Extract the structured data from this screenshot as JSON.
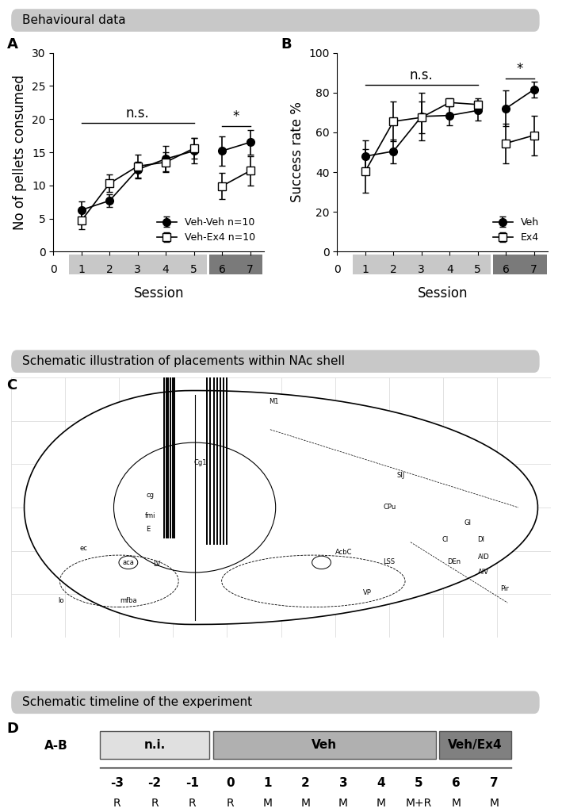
{
  "headers": [
    "Behavioural data",
    "Schematic illustration of placements within NAc shell",
    "Schematic timeline of the experiment"
  ],
  "panel_letters": [
    "A",
    "B",
    "C",
    "D"
  ],
  "chart_data": [
    {
      "type": "line",
      "x": [
        1,
        2,
        3,
        4,
        5,
        6,
        7
      ],
      "x_label": "Session",
      "y_label": "No of pellets consumed",
      "xlim": [
        0,
        7.5
      ],
      "xticks": [
        0,
        1,
        2,
        3,
        4,
        5,
        6,
        7
      ],
      "ylim": [
        0,
        30
      ],
      "yticks": [
        0,
        5,
        10,
        15,
        20,
        25,
        30
      ],
      "legend": "lower right",
      "phases": [
        {
          "sessions": [
            1,
            2,
            3,
            4,
            5
          ],
          "color": "#c8c8c8"
        },
        {
          "sessions": [
            6,
            7
          ],
          "color": "#7a7a7a"
        }
      ],
      "annotations": [
        {
          "text": "n.s.",
          "x": [
            1,
            5
          ],
          "y": 19.4
        },
        {
          "text": "*",
          "x": [
            6,
            7
          ],
          "y": 19.0
        }
      ],
      "series": [
        {
          "name": "Veh-Veh n=10",
          "color": "#000000",
          "marker": "circle",
          "values": [
            6.3,
            7.7,
            12.4,
            14.0,
            15.2,
            15.2,
            16.5
          ],
          "errors": [
            1.3,
            1.0,
            1.2,
            1.9,
            1.9,
            2.2,
            1.9
          ]
        },
        {
          "name": "Veh-Ex4 n=10",
          "color": "#000000",
          "marker": "square",
          "values": [
            4.7,
            10.3,
            12.9,
            13.5,
            15.6,
            9.9,
            12.2
          ],
          "errors": [
            1.3,
            1.3,
            1.8,
            1.5,
            1.6,
            2.0,
            2.2
          ]
        }
      ]
    },
    {
      "type": "line",
      "x": [
        1,
        2,
        3,
        4,
        5,
        6,
        7
      ],
      "x_label": "Session",
      "y_label": "Success rate %",
      "xlim": [
        0,
        7.5
      ],
      "xticks": [
        0,
        1,
        2,
        3,
        4,
        5,
        6,
        7
      ],
      "ylim": [
        0,
        100
      ],
      "yticks": [
        0,
        20,
        40,
        60,
        80,
        100
      ],
      "legend": "lower right",
      "phases": [
        {
          "sessions": [
            1,
            2,
            3,
            4,
            5
          ],
          "color": "#c8c8c8"
        },
        {
          "sessions": [
            6,
            7
          ],
          "color": "#7a7a7a"
        }
      ],
      "annotations": [
        {
          "text": "n.s.",
          "x": [
            1,
            5
          ],
          "y": 84
        },
        {
          "text": "*",
          "x": [
            6,
            7
          ],
          "y": 87
        }
      ],
      "series": [
        {
          "name": "Veh",
          "color": "#000000",
          "marker": "circle",
          "values": [
            48,
            50.5,
            68,
            68.5,
            71,
            72,
            81.5
          ],
          "errors": [
            8,
            6,
            12,
            5,
            5,
            9,
            4
          ]
        },
        {
          "name": "Ex4",
          "color": "#000000",
          "marker": "square",
          "values": [
            40.5,
            65.5,
            67.5,
            75,
            74,
            54.5,
            58.5
          ],
          "errors": [
            11,
            10,
            8,
            2,
            3,
            10,
            10
          ]
        }
      ]
    }
  ],
  "placements": {
    "atlas_labels": [
      "M1",
      "Cg1",
      "SIJ",
      "GI",
      "DI",
      "Cl",
      "AID",
      "AIV",
      "Pir",
      "CPu",
      "AcbC",
      "LSS",
      "DEn",
      "VP",
      "cg",
      "fmi",
      "E",
      "LV",
      "ec",
      "aca",
      "lo",
      "mfba"
    ]
  },
  "timeline": {
    "row_label": "A-B",
    "phases": [
      {
        "label": "n.i.",
        "days": [
          -3,
          -2,
          -1
        ],
        "color": "#e0e0e0"
      },
      {
        "label": "Veh",
        "days": [
          0,
          1,
          2,
          3,
          4,
          5
        ],
        "color": "#b0b0b0"
      },
      {
        "label": "Veh/Ex4",
        "days": [
          6,
          7
        ],
        "color": "#808080"
      }
    ],
    "days": [
      -3,
      -2,
      -1,
      0,
      1,
      2,
      3,
      4,
      5,
      6,
      7
    ],
    "session_types": [
      "R",
      "R",
      "R",
      "R",
      "M",
      "M",
      "M",
      "M",
      "M+R",
      "M",
      "M"
    ]
  }
}
